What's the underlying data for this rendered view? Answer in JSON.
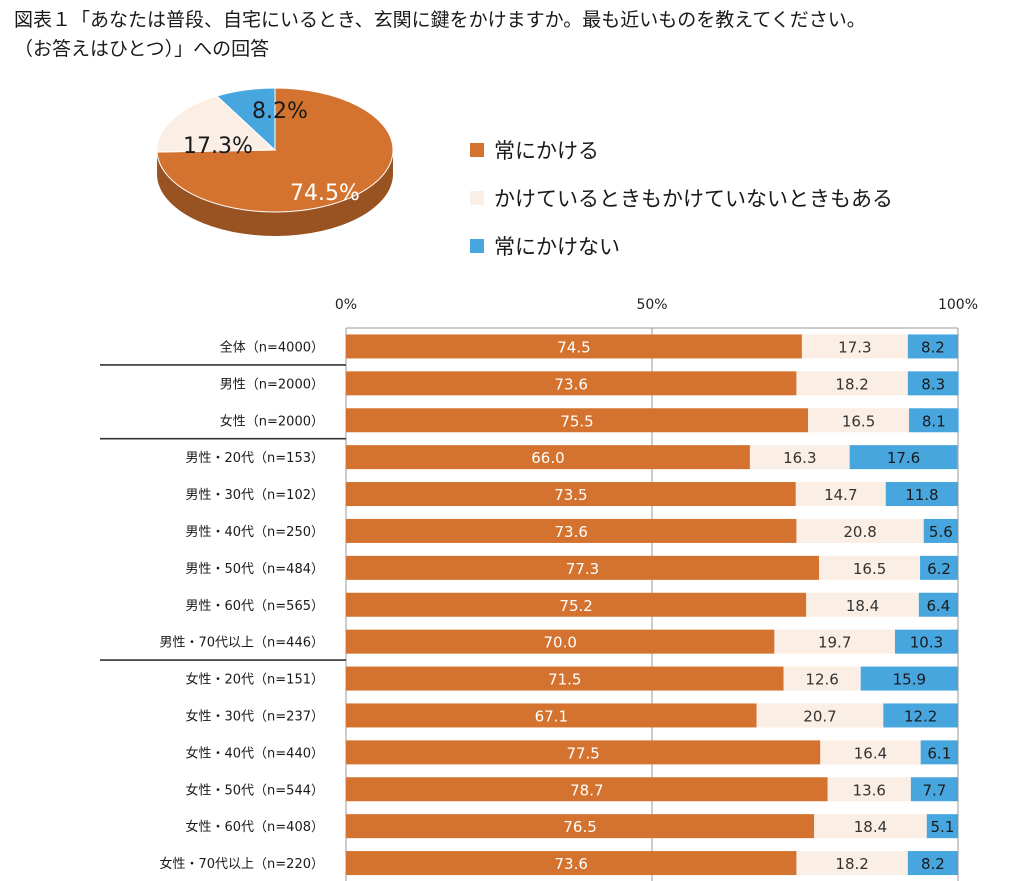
{
  "title": {
    "line1": "図表１「あなたは普段、自宅にいるとき、玄関に鍵をかけますか。最も近いものを教えてください。",
    "line2": "（お答えはひとつ）」への回答"
  },
  "colors": {
    "always": "#d4732f",
    "sometimes": "#fbeee4",
    "never": "#48a6df"
  },
  "chart_data": [
    {
      "type": "pie",
      "labels": [
        "常にかける",
        "かけているときもかけていないときもある",
        "常にかけない"
      ],
      "values": [
        74.5,
        17.3,
        8.2
      ],
      "value_labels": [
        "74.5%",
        "17.3%",
        "8.2%"
      ],
      "legend": "right"
    },
    {
      "type": "bar",
      "orientation": "horizontal",
      "stacked": true,
      "xlim": [
        0,
        100
      ],
      "ticks": [
        "0%",
        "50%",
        "100%"
      ],
      "grid": true,
      "categories": [
        "全体（n=4000）",
        "男性（n=2000）",
        "女性（n=2000）",
        "男性・20代（n=153）",
        "男性・30代（n=102）",
        "男性・40代（n=250）",
        "男性・50代（n=484）",
        "男性・60代（n=565）",
        "男性・70代以上（n=446）",
        "女性・20代（n=151）",
        "女性・30代（n=237）",
        "女性・40代（n=440）",
        "女性・50代（n=544）",
        "女性・60代（n=408）",
        "女性・70代以上（n=220）"
      ],
      "series": [
        {
          "name": "常にかける",
          "values": [
            74.5,
            73.6,
            75.5,
            66.0,
            73.5,
            73.6,
            77.3,
            75.2,
            70.0,
            71.5,
            67.1,
            77.5,
            78.7,
            76.5,
            73.6
          ],
          "labels": [
            "74.5",
            "73.6",
            "75.5",
            "66.0",
            "73.5",
            "73.6",
            "77.3",
            "75.2",
            "70.0",
            "71.5",
            "67.1",
            "77.5",
            "78.7",
            "76.5",
            "73.6"
          ]
        },
        {
          "name": "かけているときもかけていないときもある",
          "values": [
            17.3,
            18.2,
            16.5,
            16.3,
            14.7,
            20.8,
            16.5,
            18.4,
            19.7,
            12.6,
            20.7,
            16.4,
            13.6,
            18.4,
            18.2
          ],
          "labels": [
            "17.3",
            "18.2",
            "16.5",
            "16.3",
            "14.7",
            "20.8",
            "16.5",
            "18.4",
            "19.7",
            "12.6",
            "20.7",
            "16.4",
            "13.6",
            "18.4",
            "18.2"
          ]
        },
        {
          "name": "常にかけない",
          "values": [
            8.2,
            8.3,
            8.1,
            17.6,
            11.8,
            5.6,
            6.2,
            6.4,
            10.3,
            15.9,
            12.2,
            6.1,
            7.7,
            5.1,
            8.2
          ],
          "labels": [
            "8.2",
            "8.3",
            "8.1",
            "17.6",
            "11.8",
            "5.6",
            "6.2",
            "6.4",
            "10.3",
            "15.9",
            "12.2",
            "6.1",
            "7.7",
            "5.1",
            "8.2"
          ]
        }
      ]
    }
  ]
}
